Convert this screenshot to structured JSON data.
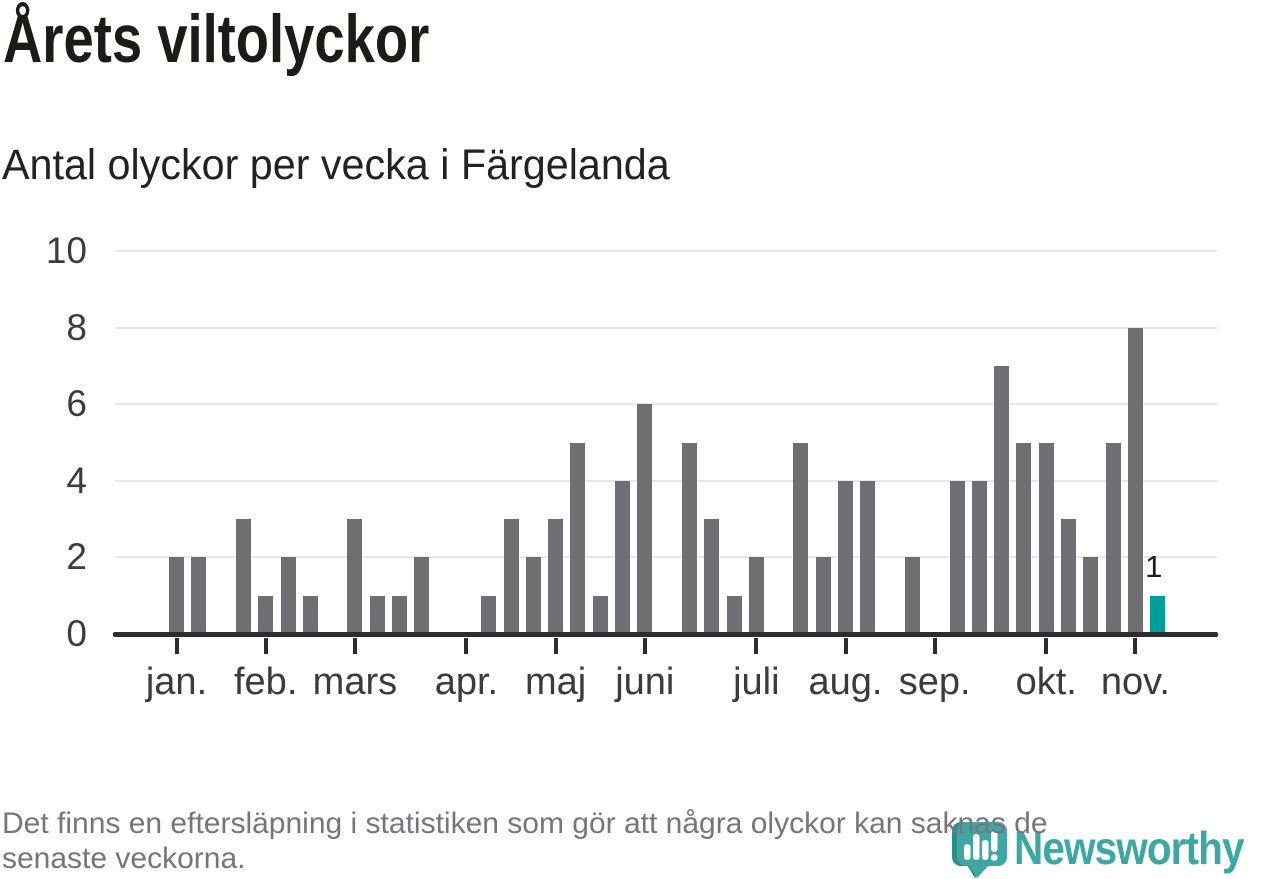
{
  "header": {
    "title": "Årets viltolyckor",
    "subtitle": "Antal olyckor per vecka i Färgelanda"
  },
  "chart_data": {
    "type": "bar",
    "title": "Årets viltolyckor",
    "subtitle": "Antal olyckor per vecka i Färgelanda",
    "x_unit": "week",
    "ylim": [
      0,
      10
    ],
    "yticks": [
      0,
      2,
      4,
      6,
      8,
      10
    ],
    "grid": "horizontal",
    "legend_position": "none",
    "weeks": 45,
    "values": [
      2,
      2,
      0,
      3,
      1,
      2,
      1,
      0,
      3,
      1,
      1,
      2,
      0,
      0,
      1,
      3,
      2,
      3,
      5,
      1,
      4,
      6,
      0,
      5,
      3,
      1,
      2,
      0,
      5,
      2,
      4,
      4,
      0,
      2,
      0,
      4,
      4,
      7,
      5,
      5,
      3,
      2,
      5,
      8,
      1
    ],
    "month_ticks": [
      {
        "label": "jan.",
        "week": 1
      },
      {
        "label": "feb.",
        "week": 5
      },
      {
        "label": "mars",
        "week": 9
      },
      {
        "label": "apr.",
        "week": 14
      },
      {
        "label": "maj",
        "week": 18
      },
      {
        "label": "juni",
        "week": 22
      },
      {
        "label": "juli",
        "week": 27
      },
      {
        "label": "aug.",
        "week": 31
      },
      {
        "label": "sep.",
        "week": 35
      },
      {
        "label": "okt.",
        "week": 40
      },
      {
        "label": "nov.",
        "week": 44
      }
    ],
    "highlight_last": {
      "week": 45,
      "value": 1,
      "label": "1"
    },
    "colors": {
      "bar": "#6e6e73",
      "highlight": "#009e99",
      "grid": "#e7e7e9",
      "axis": "#2d2d30",
      "tick_text": "#3a3a40"
    }
  },
  "footer": {
    "line1": "Det finns en eftersläpning i statistiken som gör att några olyckor kan saknas de",
    "line2": "senaste veckorna."
  },
  "logo": {
    "text": "Newsworthy",
    "icon": "newsworthy-pin-barchart-icon",
    "color": "#3ba8a4"
  }
}
